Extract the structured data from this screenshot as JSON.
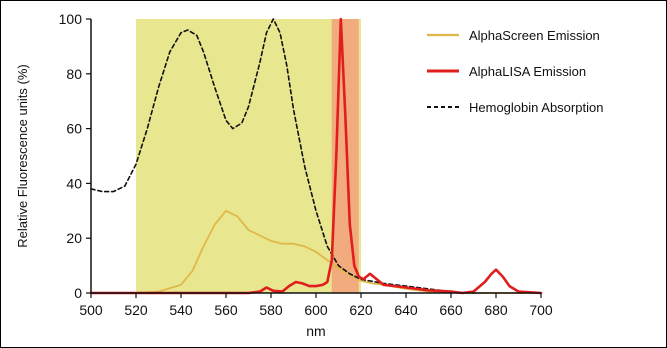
{
  "chart_data": {
    "type": "line",
    "xlabel": "nm",
    "ylabel": "Relative Fluorescence units (%)",
    "xlim": [
      500,
      700
    ],
    "ylim": [
      0,
      100
    ],
    "x_ticks": [
      500,
      520,
      540,
      560,
      580,
      600,
      620,
      640,
      660,
      680,
      700
    ],
    "y_ticks": [
      0,
      20,
      40,
      60,
      80,
      100
    ],
    "grid": false,
    "legend_position": "top-right",
    "bands": [
      {
        "name": "alphascreen-band",
        "x_start": 520,
        "x_end": 620,
        "color": "#e8e68f"
      },
      {
        "name": "alphalisa-band",
        "x_start": 607,
        "x_end": 619,
        "color": "#f3a07a"
      }
    ],
    "series": [
      {
        "name": "AlphaScreen Emission",
        "color": "#e0b84a",
        "style": "solid",
        "x": [
          500,
          520,
          530,
          540,
          545,
          550,
          555,
          560,
          565,
          570,
          575,
          580,
          585,
          590,
          595,
          600,
          605,
          610,
          615,
          620,
          625,
          630,
          640,
          650,
          660,
          670,
          700
        ],
        "y": [
          0,
          0,
          0.5,
          3,
          8,
          17,
          25,
          30,
          28,
          23,
          21,
          19,
          18,
          18,
          17,
          15,
          12,
          9,
          6.5,
          4.5,
          3.5,
          3,
          1.5,
          0.5,
          0.2,
          0,
          0
        ]
      },
      {
        "name": "AlphaLISA Emission",
        "color": "#e01e1e",
        "style": "solid",
        "x": [
          500,
          570,
          575,
          578,
          581,
          585,
          588,
          591,
          594,
          597,
          600,
          603,
          605,
          607,
          609,
          611,
          613,
          615,
          617,
          619,
          621,
          624,
          630,
          640,
          650,
          660,
          665,
          670,
          675,
          678,
          680,
          683,
          686,
          690,
          700
        ],
        "y": [
          0,
          0,
          0.5,
          2,
          0.8,
          0.5,
          2.5,
          4,
          3.5,
          2.5,
          2.5,
          3,
          4,
          12,
          50,
          100,
          65,
          25,
          10,
          6,
          5,
          7,
          3,
          2,
          1,
          0.5,
          0,
          0.5,
          4,
          7,
          8.5,
          6,
          2.5,
          0.5,
          0
        ]
      },
      {
        "name": "Hemoglobin Absorption",
        "color": "#111111",
        "style": "dashed",
        "x": [
          500,
          505,
          510,
          515,
          520,
          525,
          530,
          535,
          540,
          543,
          547,
          550,
          555,
          560,
          563,
          567,
          570,
          575,
          578,
          581,
          584,
          587,
          590,
          595,
          600,
          605,
          610,
          615,
          620,
          630,
          640,
          650,
          660,
          665,
          670
        ],
        "y": [
          38,
          37,
          37,
          39,
          47,
          60,
          75,
          88,
          95,
          96,
          94,
          88,
          75,
          63,
          60,
          62,
          68,
          84,
          95,
          100,
          95,
          83,
          67,
          46,
          30,
          17,
          10,
          7,
          5,
          3.5,
          2.5,
          1.5,
          0.5,
          0.2,
          0
        ]
      }
    ]
  }
}
